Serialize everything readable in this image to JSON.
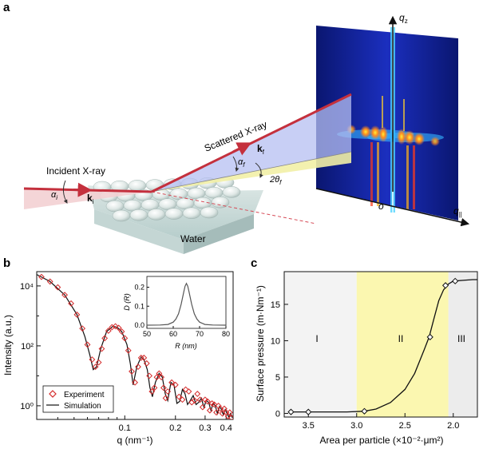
{
  "panel_a": {
    "label": "a",
    "incident_label": "Incident X-ray",
    "scattered_label": "Scattered X-ray",
    "ki_label": "k",
    "ki_sub": "i",
    "kf_label": "k",
    "kf_sub": "f",
    "alpha_i": "α",
    "alpha_i_sub": "i",
    "alpha_f": "α",
    "alpha_f_sub": "f",
    "two_theta": "2θ",
    "two_theta_sub": "f",
    "water_label": "Water",
    "qz_label": "q",
    "qz_sub": "z",
    "qpar_label": "q",
    "qpar_sub": "||",
    "origin_label": "o",
    "colors": {
      "beam": "#d23a48",
      "plane_blue": "#b6bff2",
      "plane_yellow": "#f2efa6",
      "detector": "#0a1a7a"
    }
  },
  "chart_data": [
    {
      "panel": "b",
      "type": "line",
      "xlabel": "q (nm⁻¹)",
      "ylabel": "Intensity (a.u.)",
      "x_scale": "log",
      "y_scale": "log",
      "xlim": [
        0.03,
        0.44
      ],
      "ylim": [
        0.35,
        30000
      ],
      "x_ticks": [
        "0.1",
        "0.2",
        "0.3",
        "0.4"
      ],
      "y_ticks": [
        "10⁰",
        "10²",
        "10⁴"
      ],
      "legend": {
        "position": "bottom-left",
        "entries": [
          "Experiment",
          "Simulation"
        ]
      },
      "series": [
        {
          "name": "Experiment",
          "marker": "diamond",
          "color": "#d42a2a",
          "x": [
            0.032,
            0.036,
            0.04,
            0.044,
            0.048,
            0.052,
            0.056,
            0.06,
            0.064,
            0.067,
            0.07,
            0.073,
            0.076,
            0.08,
            0.084,
            0.088,
            0.092,
            0.096,
            0.1,
            0.105,
            0.11,
            0.115,
            0.12,
            0.125,
            0.13,
            0.135,
            0.14,
            0.145,
            0.15,
            0.155,
            0.16,
            0.165,
            0.17,
            0.175,
            0.18,
            0.19,
            0.2,
            0.21,
            0.22,
            0.23,
            0.24,
            0.25,
            0.26,
            0.27,
            0.28,
            0.29,
            0.3,
            0.31,
            0.32,
            0.33,
            0.34,
            0.35,
            0.36,
            0.37,
            0.38,
            0.39,
            0.4,
            0.41,
            0.42,
            0.43
          ],
          "y": [
            20000,
            14000,
            9000,
            5000,
            2600,
            1100,
            380,
            110,
            35,
            20,
            28,
            80,
            180,
            320,
            420,
            450,
            400,
            300,
            180,
            70,
            14,
            6,
            20,
            40,
            40,
            26,
            10,
            3,
            4,
            9,
            12,
            9,
            4,
            1.8,
            3,
            6,
            5,
            2,
            1.6,
            3.5,
            3,
            1.3,
            1.5,
            2.5,
            1.6,
            0.9,
            1.6,
            1.4,
            0.7,
            1.2,
            1.1,
            0.6,
            1,
            0.8,
            0.55,
            0.8,
            0.6,
            0.45,
            0.6,
            0.4
          ]
        },
        {
          "name": "Simulation",
          "color": "#111111",
          "x": [
            0.03,
            0.036,
            0.044,
            0.052,
            0.058,
            0.062,
            0.065,
            0.068,
            0.072,
            0.078,
            0.085,
            0.09,
            0.096,
            0.103,
            0.108,
            0.112,
            0.118,
            0.125,
            0.13,
            0.136,
            0.141,
            0.146,
            0.152,
            0.16,
            0.167,
            0.174,
            0.18,
            0.188,
            0.196,
            0.204,
            0.212,
            0.22,
            0.228,
            0.236,
            0.245,
            0.255,
            0.265,
            0.275,
            0.285,
            0.295,
            0.305,
            0.315,
            0.325,
            0.335,
            0.345,
            0.355,
            0.365,
            0.375,
            0.385,
            0.395,
            0.405,
            0.415,
            0.425,
            0.435
          ],
          "y": [
            24000,
            14000,
            5000,
            1100,
            200,
            50,
            16,
            20,
            80,
            300,
            450,
            420,
            300,
            110,
            25,
            5,
            20,
            42,
            35,
            16,
            4,
            2,
            6,
            12,
            9,
            2.5,
            1.5,
            6,
            5,
            1.2,
            1.4,
            3.5,
            2.5,
            1.1,
            1.5,
            2.2,
            1.1,
            1.3,
            1.8,
            0.9,
            1.5,
            1.3,
            0.7,
            1.2,
            1.0,
            0.55,
            0.95,
            0.75,
            0.5,
            0.75,
            0.55,
            0.42,
            0.55,
            0.4
          ]
        }
      ]
    },
    {
      "panel": "b-inset",
      "type": "line",
      "xlabel": "R (nm)",
      "ylabel": "D (R)",
      "xlim": [
        50,
        80
      ],
      "ylim": [
        0,
        0.24
      ],
      "x_ticks": [
        "50",
        "60",
        "70",
        "80"
      ],
      "y_ticks": [
        "0.0",
        "0.1",
        "0.2"
      ],
      "series": [
        {
          "color": "#555555",
          "x": [
            50,
            55,
            58,
            60,
            61,
            62,
            63,
            64,
            64.5,
            65,
            65.5,
            66,
            67,
            68,
            69,
            70,
            72,
            75,
            80
          ],
          "y": [
            0,
            0.001,
            0.004,
            0.016,
            0.032,
            0.06,
            0.11,
            0.175,
            0.205,
            0.22,
            0.205,
            0.175,
            0.11,
            0.06,
            0.032,
            0.016,
            0.004,
            0.001,
            0
          ]
        }
      ]
    },
    {
      "panel": "c",
      "type": "line",
      "xlabel": "Area per particle (×10⁻²·μm²)",
      "ylabel": "Surface pressure (m·Nm⁻¹)",
      "x_reversed": true,
      "xlim": [
        3.75,
        1.75
      ],
      "ylim": [
        -0.5,
        19.5
      ],
      "x_ticks": [
        "3.5",
        "3.0",
        "2.5",
        "2.0"
      ],
      "y_ticks": [
        "0",
        "5",
        "10",
        "15"
      ],
      "regions": [
        {
          "label": "I",
          "from": 3.75,
          "to": 3.0,
          "color": "#f3f3f3"
        },
        {
          "label": "II",
          "from": 3.0,
          "to": 2.05,
          "color": "#fbf7b0"
        },
        {
          "label": "III",
          "from": 2.05,
          "to": 1.75,
          "color": "#ececec"
        }
      ],
      "series": [
        {
          "color": "#111111",
          "marker": "diamond",
          "x": [
            3.68,
            3.5,
            3.3,
            3.1,
            2.92,
            2.8,
            2.65,
            2.5,
            2.4,
            2.3,
            2.25,
            2.2,
            2.15,
            2.1,
            2.05,
            2.0,
            1.9,
            1.8,
            1.75
          ],
          "y": [
            0.2,
            0.2,
            0.2,
            0.2,
            0.3,
            0.6,
            1.5,
            3.3,
            5.5,
            8.8,
            10.5,
            13.0,
            15.5,
            17.0,
            17.8,
            18.2,
            18.3,
            18.4,
            18.4
          ],
          "markers_x": [
            3.68,
            3.5,
            2.92,
            2.24,
            2.08,
            1.98
          ],
          "markers_y": [
            0.2,
            0.2,
            0.3,
            10.5,
            17.6,
            18.2
          ]
        }
      ]
    }
  ],
  "labels": {
    "b_panel": "b",
    "c_panel": "c",
    "region_I": "I",
    "region_II": "II",
    "region_III": "III"
  }
}
